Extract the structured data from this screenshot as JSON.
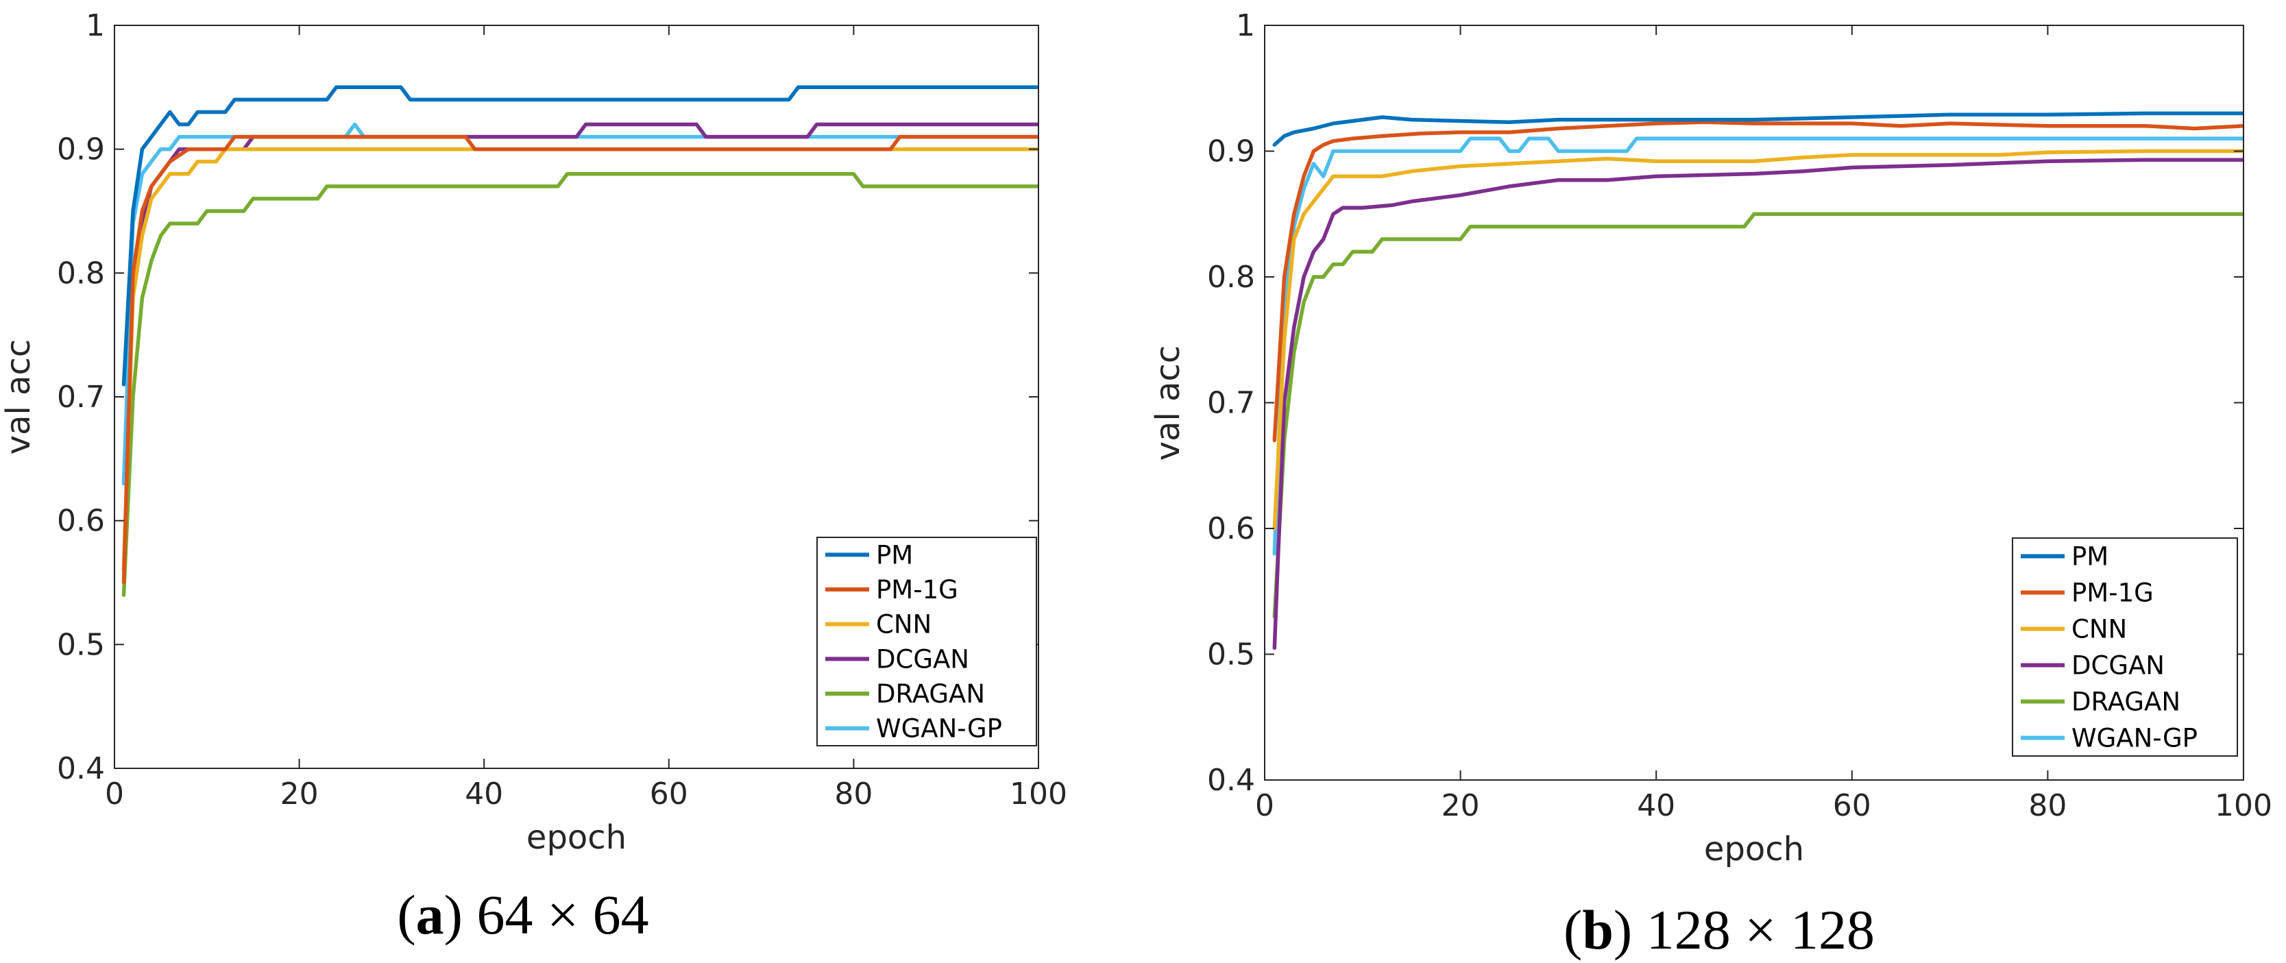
{
  "chart_data": [
    {
      "type": "line",
      "caption": {
        "letter": "a",
        "text": "64 × 64"
      },
      "xlabel": "epoch",
      "ylabel": "val acc",
      "xlim": [
        0,
        100
      ],
      "ylim": [
        0.4,
        1
      ],
      "xticks": [
        "0",
        "20",
        "40",
        "60",
        "80",
        "100"
      ],
      "yticks": [
        "0.4",
        "0.5",
        "0.6",
        "0.7",
        "0.8",
        "0.9",
        "1"
      ],
      "legend_position": "bottom-right",
      "series": [
        {
          "name": "PM",
          "color": "#0072BD",
          "points": [
            [
              1,
              0.71
            ],
            [
              2,
              0.85
            ],
            [
              3,
              0.9
            ],
            [
              4,
              0.91
            ],
            [
              5,
              0.92
            ],
            [
              6,
              0.93
            ],
            [
              7,
              0.92
            ],
            [
              8,
              0.92
            ],
            [
              9,
              0.93
            ],
            [
              11,
              0.93
            ],
            [
              12,
              0.93
            ],
            [
              13,
              0.94
            ],
            [
              23,
              0.94
            ],
            [
              24,
              0.95
            ],
            [
              31,
              0.95
            ],
            [
              32,
              0.94
            ],
            [
              73,
              0.94
            ],
            [
              74,
              0.95
            ],
            [
              100,
              0.95
            ]
          ]
        },
        {
          "name": "PM-1G",
          "color": "#D95319",
          "points": [
            [
              1,
              0.55
            ],
            [
              2,
              0.8
            ],
            [
              3,
              0.85
            ],
            [
              4,
              0.87
            ],
            [
              5,
              0.88
            ],
            [
              6,
              0.89
            ],
            [
              8,
              0.9
            ],
            [
              12,
              0.9
            ],
            [
              13,
              0.91
            ],
            [
              15,
              0.91
            ],
            [
              38,
              0.91
            ],
            [
              39,
              0.9
            ],
            [
              84,
              0.9
            ],
            [
              85,
              0.91
            ],
            [
              100,
              0.91
            ]
          ]
        },
        {
          "name": "CNN",
          "color": "#EDB120",
          "points": [
            [
              1,
              0.56
            ],
            [
              2,
              0.78
            ],
            [
              3,
              0.83
            ],
            [
              4,
              0.86
            ],
            [
              5,
              0.87
            ],
            [
              6,
              0.88
            ],
            [
              8,
              0.88
            ],
            [
              9,
              0.89
            ],
            [
              11,
              0.89
            ],
            [
              12,
              0.9
            ],
            [
              100,
              0.9
            ]
          ]
        },
        {
          "name": "DCGAN",
          "color": "#7E2F8E",
          "points": [
            [
              1,
              0.56
            ],
            [
              2,
              0.79
            ],
            [
              3,
              0.84
            ],
            [
              4,
              0.87
            ],
            [
              5,
              0.88
            ],
            [
              6,
              0.89
            ],
            [
              7,
              0.9
            ],
            [
              13,
              0.9
            ],
            [
              14,
              0.9
            ],
            [
              15,
              0.91
            ],
            [
              50,
              0.91
            ],
            [
              51,
              0.92
            ],
            [
              63,
              0.92
            ],
            [
              64,
              0.91
            ],
            [
              75,
              0.91
            ],
            [
              76,
              0.92
            ],
            [
              100,
              0.92
            ]
          ]
        },
        {
          "name": "DRAGAN",
          "color": "#77AC30",
          "points": [
            [
              1,
              0.54
            ],
            [
              2,
              0.7
            ],
            [
              3,
              0.78
            ],
            [
              4,
              0.81
            ],
            [
              5,
              0.83
            ],
            [
              6,
              0.84
            ],
            [
              9,
              0.84
            ],
            [
              10,
              0.85
            ],
            [
              14,
              0.85
            ],
            [
              15,
              0.86
            ],
            [
              22,
              0.86
            ],
            [
              23,
              0.87
            ],
            [
              48,
              0.87
            ],
            [
              49,
              0.88
            ],
            [
              80,
              0.88
            ],
            [
              81,
              0.87
            ],
            [
              100,
              0.87
            ]
          ]
        },
        {
          "name": "WGAN-GP",
          "color": "#4DBEEE",
          "points": [
            [
              1,
              0.63
            ],
            [
              2,
              0.84
            ],
            [
              3,
              0.88
            ],
            [
              4,
              0.89
            ],
            [
              5,
              0.9
            ],
            [
              6,
              0.9
            ],
            [
              7,
              0.91
            ],
            [
              25,
              0.91
            ],
            [
              26,
              0.92
            ],
            [
              27,
              0.91
            ],
            [
              100,
              0.91
            ]
          ]
        }
      ]
    },
    {
      "type": "line",
      "caption": {
        "letter": "b",
        "text": "128 × 128"
      },
      "xlabel": "epoch",
      "ylabel": "val acc",
      "xlim": [
        0,
        100
      ],
      "ylim": [
        0.4,
        1
      ],
      "xticks": [
        "0",
        "20",
        "40",
        "60",
        "80",
        "100"
      ],
      "yticks": [
        "0.4",
        "0.5",
        "0.6",
        "0.7",
        "0.8",
        "0.9",
        "1"
      ],
      "legend_position": "bottom-right",
      "series": [
        {
          "name": "PM",
          "color": "#0072BD",
          "points": [
            [
              1,
              0.905
            ],
            [
              2,
              0.912
            ],
            [
              3,
              0.915
            ],
            [
              5,
              0.918
            ],
            [
              7,
              0.922
            ],
            [
              9,
              0.924
            ],
            [
              12,
              0.927
            ],
            [
              15,
              0.925
            ],
            [
              20,
              0.924
            ],
            [
              25,
              0.923
            ],
            [
              30,
              0.925
            ],
            [
              40,
              0.925
            ],
            [
              50,
              0.925
            ],
            [
              60,
              0.927
            ],
            [
              70,
              0.929
            ],
            [
              80,
              0.929
            ],
            [
              90,
              0.93
            ],
            [
              100,
              0.93
            ]
          ]
        },
        {
          "name": "PM-1G",
          "color": "#D95319",
          "points": [
            [
              1,
              0.67
            ],
            [
              2,
              0.8
            ],
            [
              3,
              0.85
            ],
            [
              4,
              0.88
            ],
            [
              5,
              0.9
            ],
            [
              6,
              0.905
            ],
            [
              7,
              0.908
            ],
            [
              9,
              0.91
            ],
            [
              12,
              0.912
            ],
            [
              16,
              0.914
            ],
            [
              20,
              0.915
            ],
            [
              25,
              0.915
            ],
            [
              30,
              0.918
            ],
            [
              35,
              0.92
            ],
            [
              40,
              0.922
            ],
            [
              45,
              0.923
            ],
            [
              50,
              0.922
            ],
            [
              60,
              0.922
            ],
            [
              65,
              0.92
            ],
            [
              70,
              0.922
            ],
            [
              80,
              0.92
            ],
            [
              90,
              0.92
            ],
            [
              95,
              0.918
            ],
            [
              100,
              0.92
            ]
          ]
        },
        {
          "name": "CNN",
          "color": "#EDB120",
          "points": [
            [
              1,
              0.6
            ],
            [
              2,
              0.75
            ],
            [
              3,
              0.83
            ],
            [
              4,
              0.85
            ],
            [
              5,
              0.86
            ],
            [
              6,
              0.87
            ],
            [
              7,
              0.88
            ],
            [
              9,
              0.88
            ],
            [
              12,
              0.88
            ],
            [
              15,
              0.884
            ],
            [
              20,
              0.888
            ],
            [
              25,
              0.89
            ],
            [
              30,
              0.892
            ],
            [
              35,
              0.894
            ],
            [
              40,
              0.892
            ],
            [
              50,
              0.892
            ],
            [
              55,
              0.895
            ],
            [
              60,
              0.897
            ],
            [
              70,
              0.897
            ],
            [
              75,
              0.897
            ],
            [
              80,
              0.899
            ],
            [
              90,
              0.9
            ],
            [
              100,
              0.9
            ]
          ]
        },
        {
          "name": "DCGAN",
          "color": "#7E2F8E",
          "points": [
            [
              1,
              0.505
            ],
            [
              2,
              0.7
            ],
            [
              3,
              0.76
            ],
            [
              4,
              0.8
            ],
            [
              5,
              0.82
            ],
            [
              6,
              0.83
            ],
            [
              7,
              0.85
            ],
            [
              8,
              0.855
            ],
            [
              10,
              0.855
            ],
            [
              13,
              0.857
            ],
            [
              15,
              0.86
            ],
            [
              20,
              0.865
            ],
            [
              25,
              0.872
            ],
            [
              30,
              0.877
            ],
            [
              35,
              0.877
            ],
            [
              40,
              0.88
            ],
            [
              50,
              0.882
            ],
            [
              55,
              0.884
            ],
            [
              60,
              0.887
            ],
            [
              70,
              0.889
            ],
            [
              80,
              0.892
            ],
            [
              90,
              0.893
            ],
            [
              100,
              0.893
            ]
          ]
        },
        {
          "name": "DRAGAN",
          "color": "#77AC30",
          "points": [
            [
              1,
              0.53
            ],
            [
              2,
              0.67
            ],
            [
              3,
              0.74
            ],
            [
              4,
              0.78
            ],
            [
              5,
              0.8
            ],
            [
              6,
              0.8
            ],
            [
              7,
              0.81
            ],
            [
              8,
              0.81
            ],
            [
              9,
              0.82
            ],
            [
              11,
              0.82
            ],
            [
              12,
              0.83
            ],
            [
              20,
              0.83
            ],
            [
              21,
              0.84
            ],
            [
              49,
              0.84
            ],
            [
              50,
              0.85
            ],
            [
              100,
              0.85
            ]
          ]
        },
        {
          "name": "WGAN-GP",
          "color": "#4DBEEE",
          "points": [
            [
              1,
              0.58
            ],
            [
              2,
              0.78
            ],
            [
              3,
              0.84
            ],
            [
              4,
              0.87
            ],
            [
              5,
              0.89
            ],
            [
              6,
              0.88
            ],
            [
              7,
              0.9
            ],
            [
              20,
              0.9
            ],
            [
              21,
              0.91
            ],
            [
              24,
              0.91
            ],
            [
              25,
              0.9
            ],
            [
              26,
              0.9
            ],
            [
              27,
              0.91
            ],
            [
              29,
              0.91
            ],
            [
              30,
              0.9
            ],
            [
              37,
              0.9
            ],
            [
              38,
              0.91
            ],
            [
              100,
              0.91
            ]
          ]
        }
      ]
    }
  ]
}
